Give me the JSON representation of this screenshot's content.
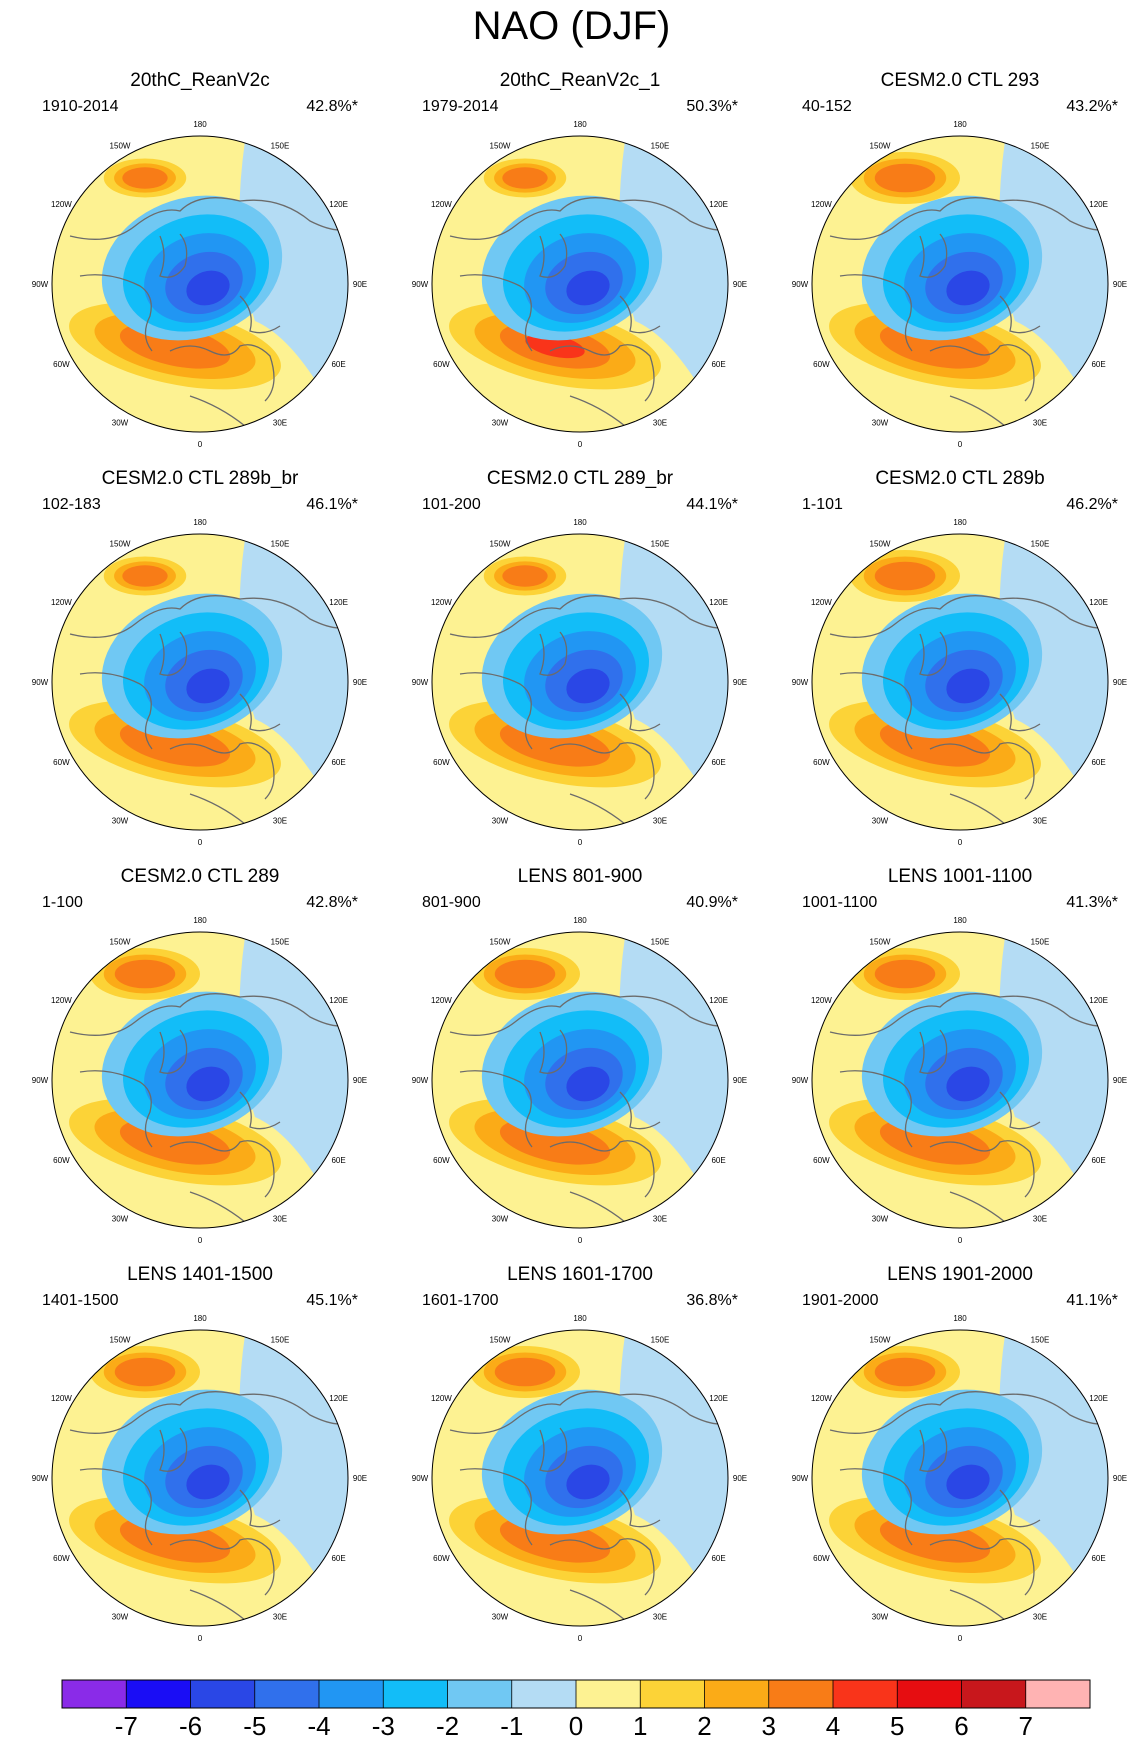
{
  "figure": {
    "title": "NAO (DJF)"
  },
  "chart_data": {
    "type": "contour-map",
    "title": "NAO (DJF)",
    "projection": "polar stereographic (Northern Hemisphere)",
    "longitude_labels": [
      "180",
      "150E",
      "120E",
      "90E",
      "60E",
      "30E",
      "0",
      "30W",
      "60W",
      "90W",
      "120W",
      "150W"
    ],
    "panels": [
      {
        "title": "20thC_ReanV2c",
        "period": "1910-2014",
        "variance": "42.8%*"
      },
      {
        "title": "20thC_ReanV2c_1",
        "period": "1979-2014",
        "variance": "50.3%*"
      },
      {
        "title": "CESM2.0 CTL 293",
        "period": "40-152",
        "variance": "43.2%*"
      },
      {
        "title": "CESM2.0 CTL 289b_br",
        "period": "102-183",
        "variance": "46.1%*"
      },
      {
        "title": "CESM2.0 CTL 289_br",
        "period": "101-200",
        "variance": "44.1%*"
      },
      {
        "title": "CESM2.0 CTL 289b",
        "period": "1-101",
        "variance": "46.2%*"
      },
      {
        "title": "CESM2.0 CTL 289",
        "period": "1-100",
        "variance": "42.8%*"
      },
      {
        "title": "LENS 801-900",
        "period": "801-900",
        "variance": "40.9%*"
      },
      {
        "title": "LENS 1001-1100",
        "period": "1001-1100",
        "variance": "41.3%*"
      },
      {
        "title": "LENS 1401-1500",
        "period": "1401-1500",
        "variance": "45.1%*"
      },
      {
        "title": "LENS 1601-1700",
        "period": "1601-1700",
        "variance": "36.8%*"
      },
      {
        "title": "LENS 1901-2000",
        "period": "1901-2000",
        "variance": "41.1%*"
      }
    ],
    "colorbar": {
      "labels": [
        "-7",
        "-6",
        "-5",
        "-4",
        "-3",
        "-2",
        "-1",
        "0",
        "1",
        "2",
        "3",
        "4",
        "5",
        "6",
        "7"
      ],
      "colors": [
        "#8a2be8",
        "#1a0df5",
        "#2a47e6",
        "#3070ec",
        "#2196f3",
        "#12bdf8",
        "#70c8f3",
        "#b4dcf4",
        "#fdf292",
        "#fcd337",
        "#fbab17",
        "#f87c17",
        "#f9341a",
        "#e60d11",
        "#c8171c",
        "#ffb3b3"
      ]
    },
    "map_colors": {
      "blue": [
        "#b4dcf4",
        "#70c8f3",
        "#12bdf8",
        "#2196f3",
        "#3070ec",
        "#2a47e6"
      ],
      "orange": [
        "#fdf292",
        "#fcd337",
        "#fbab17",
        "#f87c17",
        "#f9341a"
      ],
      "coast": "#6b6b6b"
    }
  }
}
